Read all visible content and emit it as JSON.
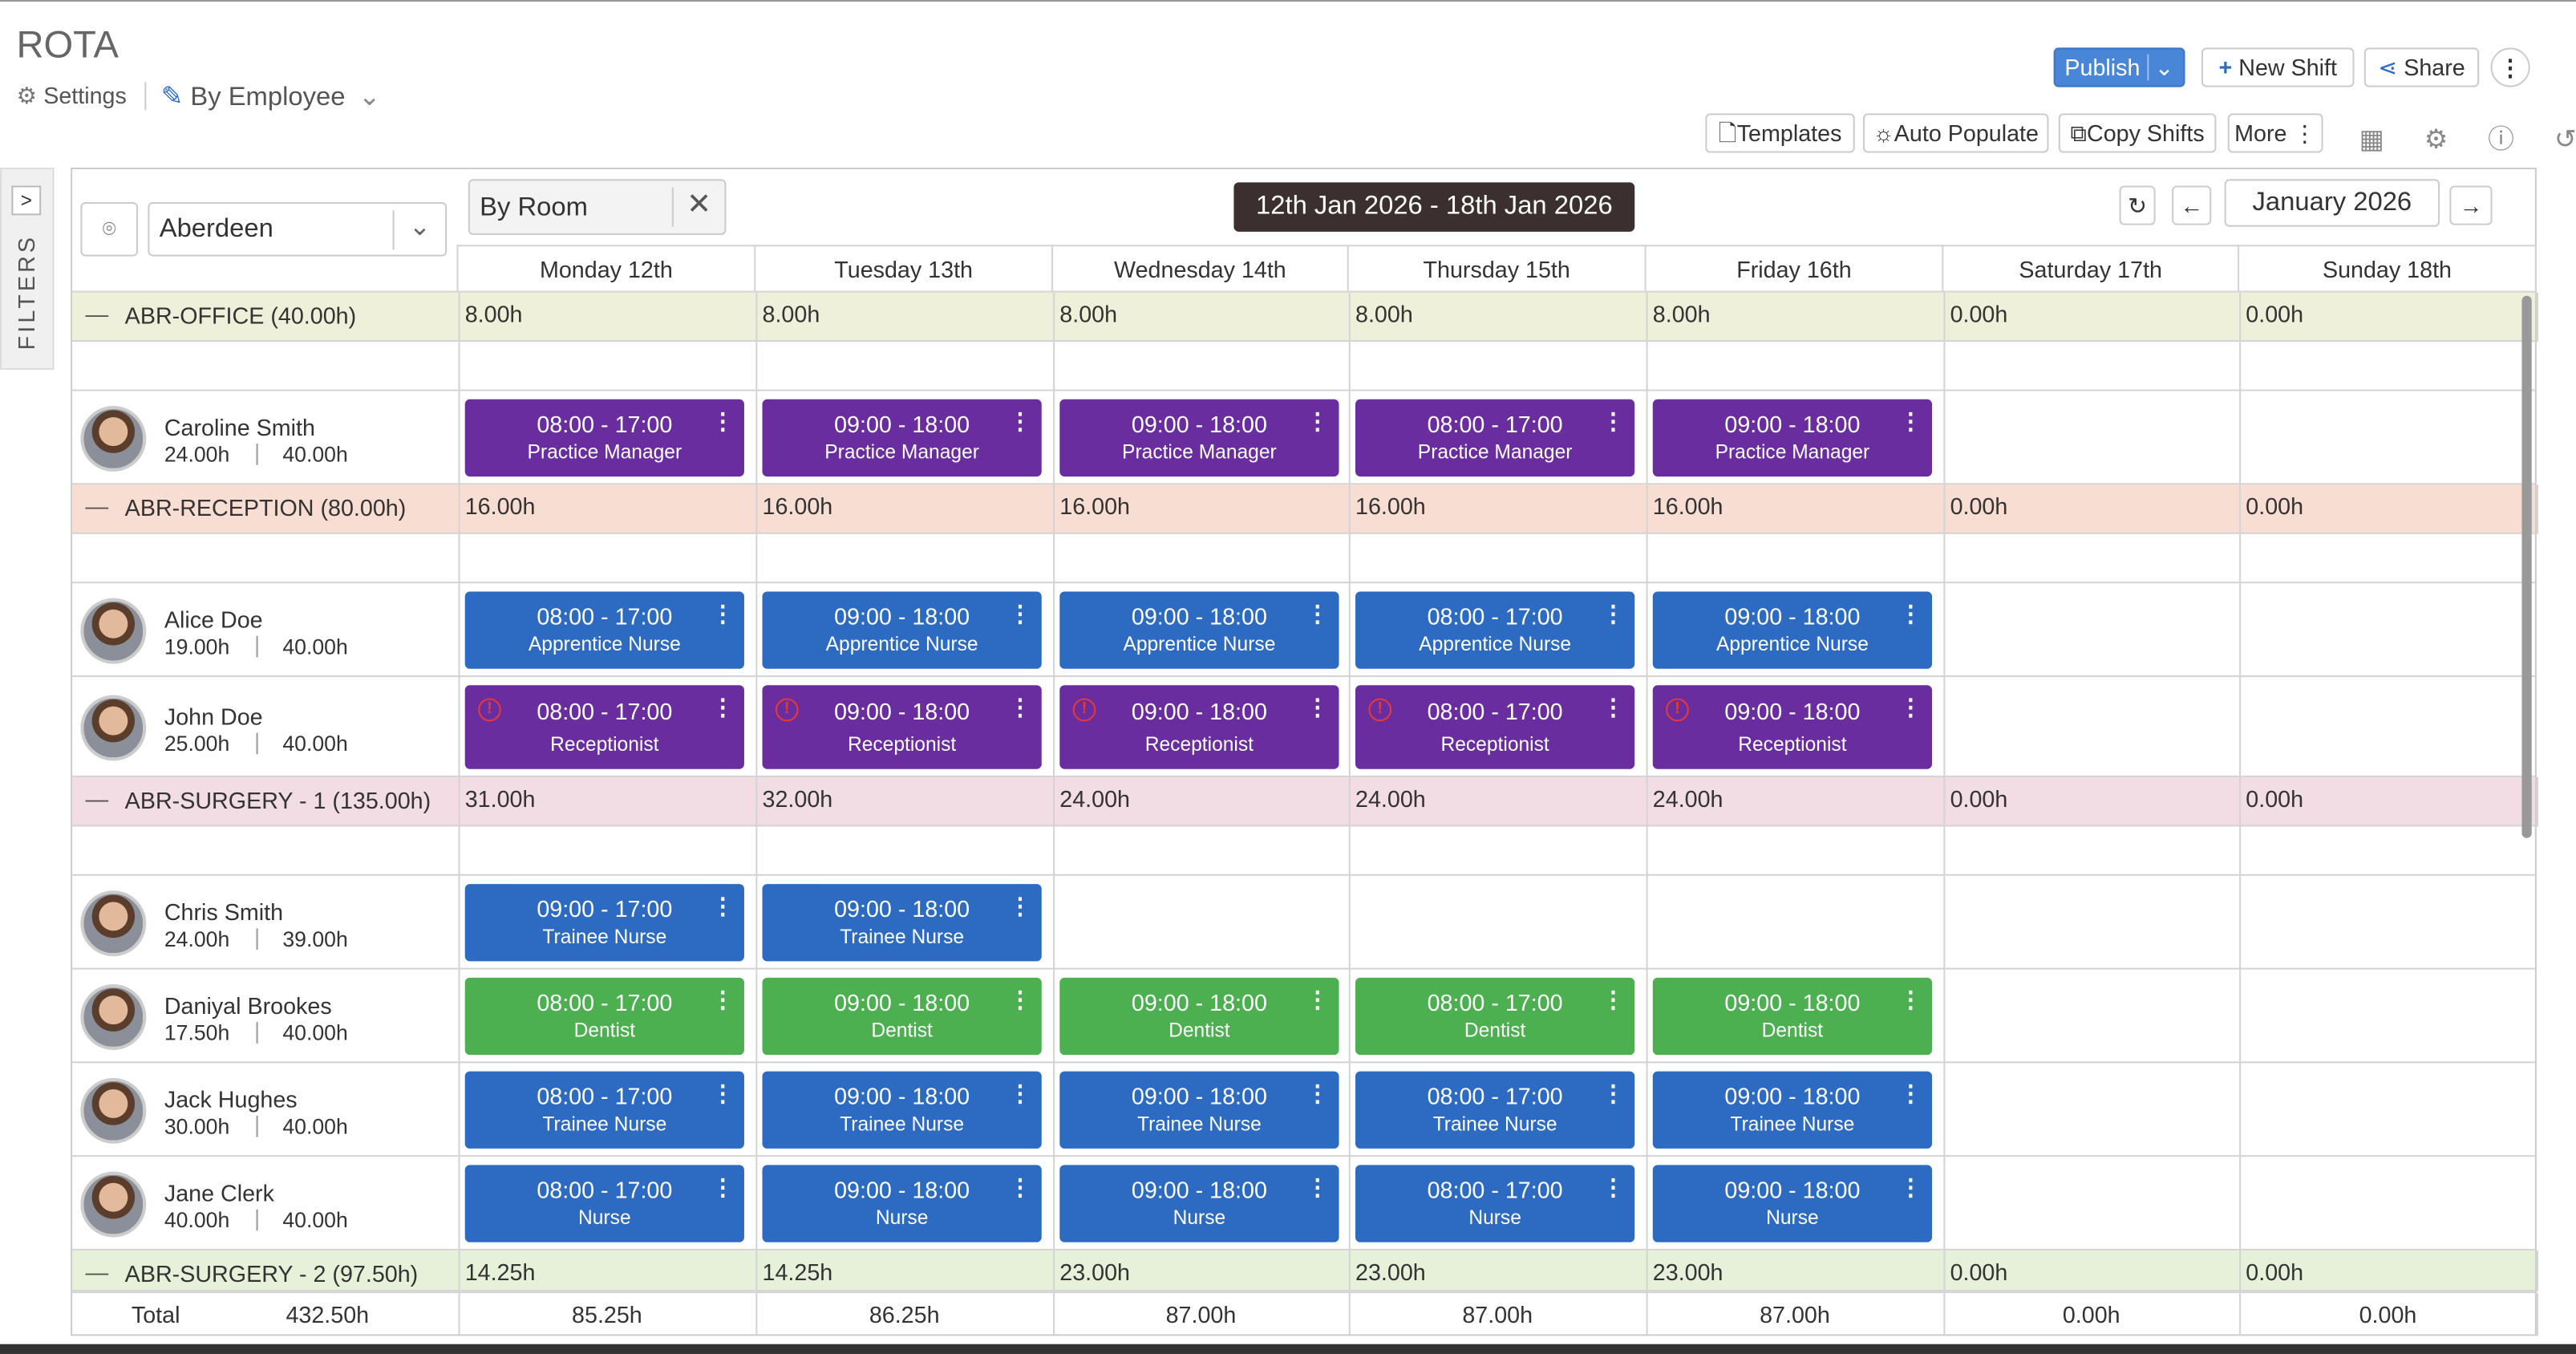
{
  "header": {
    "title": "ROTA",
    "settings": "Settings",
    "view": "By Employee"
  },
  "toolbar": {
    "publish": "Publish",
    "new_shift": "New Shift",
    "share": "Share",
    "templates": "Templates",
    "auto_populate": "Auto Populate",
    "copy_shifts": "Copy Shifts",
    "more": "More"
  },
  "sidebar": {
    "filters": "FILTERS"
  },
  "filters": {
    "location": "Aberdeen",
    "room_filter": "By Room"
  },
  "period": {
    "range": "12th Jan 2026 - 18th Jan 2026",
    "month": "January 2026"
  },
  "days": [
    "Monday 12th",
    "Tuesday 13th",
    "Wednesday 14th",
    "Thursday 15th",
    "Friday 16th",
    "Saturday 17th",
    "Sunday 18th"
  ],
  "groups": [
    {
      "name": "ABR-OFFICE (40.00h)",
      "color": "#eef0d9",
      "totals": [
        "8.00h",
        "8.00h",
        "8.00h",
        "8.00h",
        "8.00h",
        "0.00h",
        "0.00h"
      ],
      "employees": [
        {
          "name": "Caroline Smith",
          "hours": "24.00h",
          "contract": "40.00h",
          "shifts": [
            {
              "time": "08:00 - 17:00",
              "role": "Practice Manager",
              "color": "#6a2d9f",
              "warning": false
            },
            {
              "time": "09:00 - 18:00",
              "role": "Practice Manager",
              "color": "#6a2d9f",
              "warning": false
            },
            {
              "time": "09:00 - 18:00",
              "role": "Practice Manager",
              "color": "#6a2d9f",
              "warning": false
            },
            {
              "time": "08:00 - 17:00",
              "role": "Practice Manager",
              "color": "#6a2d9f",
              "warning": false
            },
            {
              "time": "09:00 - 18:00",
              "role": "Practice Manager",
              "color": "#6a2d9f",
              "warning": false
            },
            null,
            null
          ]
        }
      ]
    },
    {
      "name": "ABR-RECEPTION (80.00h)",
      "color": "#f8ddd3",
      "totals": [
        "16.00h",
        "16.00h",
        "16.00h",
        "16.00h",
        "16.00h",
        "0.00h",
        "0.00h"
      ],
      "employees": [
        {
          "name": "Alice Doe",
          "hours": "19.00h",
          "contract": "40.00h",
          "shifts": [
            {
              "time": "08:00 - 17:00",
              "role": "Apprentice Nurse",
              "color": "#2c6bc1",
              "warning": false
            },
            {
              "time": "09:00 - 18:00",
              "role": "Apprentice Nurse",
              "color": "#2c6bc1",
              "warning": false
            },
            {
              "time": "09:00 - 18:00",
              "role": "Apprentice Nurse",
              "color": "#2c6bc1",
              "warning": false
            },
            {
              "time": "08:00 - 17:00",
              "role": "Apprentice Nurse",
              "color": "#2c6bc1",
              "warning": false
            },
            {
              "time": "09:00 - 18:00",
              "role": "Apprentice Nurse",
              "color": "#2c6bc1",
              "warning": false
            },
            null,
            null
          ]
        },
        {
          "name": "John Doe",
          "hours": "25.00h",
          "contract": "40.00h",
          "shifts": [
            {
              "time": "08:00 - 17:00",
              "role": "Receptionist",
              "color": "#6a2d9f",
              "warning": true
            },
            {
              "time": "09:00 - 18:00",
              "role": "Receptionist",
              "color": "#6a2d9f",
              "warning": true
            },
            {
              "time": "09:00 - 18:00",
              "role": "Receptionist",
              "color": "#6a2d9f",
              "warning": true
            },
            {
              "time": "08:00 - 17:00",
              "role": "Receptionist",
              "color": "#6a2d9f",
              "warning": true
            },
            {
              "time": "09:00 - 18:00",
              "role": "Receptionist",
              "color": "#6a2d9f",
              "warning": true
            },
            null,
            null
          ]
        }
      ]
    },
    {
      "name": "ABR-SURGERY - 1 (135.00h)",
      "color": "#f1dde3",
      "totals": [
        "31.00h",
        "32.00h",
        "24.00h",
        "24.00h",
        "24.00h",
        "0.00h",
        "0.00h"
      ],
      "employees": [
        {
          "name": "Chris Smith",
          "hours": "24.00h",
          "contract": "39.00h",
          "shifts": [
            {
              "time": "09:00 - 17:00",
              "role": "Trainee Nurse",
              "color": "#2c6bc1",
              "warning": false
            },
            {
              "time": "09:00 - 18:00",
              "role": "Trainee Nurse",
              "color": "#2c6bc1",
              "warning": false
            },
            null,
            null,
            null,
            null,
            null
          ]
        },
        {
          "name": "Daniyal Brookes",
          "hours": "17.50h",
          "contract": "40.00h",
          "shifts": [
            {
              "time": "08:00 - 17:00",
              "role": "Dentist",
              "color": "#4caf50",
              "warning": false
            },
            {
              "time": "09:00 - 18:00",
              "role": "Dentist",
              "color": "#4caf50",
              "warning": false
            },
            {
              "time": "09:00 - 18:00",
              "role": "Dentist",
              "color": "#4caf50",
              "warning": false
            },
            {
              "time": "08:00 - 17:00",
              "role": "Dentist",
              "color": "#4caf50",
              "warning": false
            },
            {
              "time": "09:00 - 18:00",
              "role": "Dentist",
              "color": "#4caf50",
              "warning": false
            },
            null,
            null
          ]
        },
        {
          "name": "Jack Hughes",
          "hours": "30.00h",
          "contract": "40.00h",
          "shifts": [
            {
              "time": "08:00 - 17:00",
              "role": "Trainee Nurse",
              "color": "#2c6bc1",
              "warning": false
            },
            {
              "time": "09:00 - 18:00",
              "role": "Trainee Nurse",
              "color": "#2c6bc1",
              "warning": false
            },
            {
              "time": "09:00 - 18:00",
              "role": "Trainee Nurse",
              "color": "#2c6bc1",
              "warning": false
            },
            {
              "time": "08:00 - 17:00",
              "role": "Trainee Nurse",
              "color": "#2c6bc1",
              "warning": false
            },
            {
              "time": "09:00 - 18:00",
              "role": "Trainee Nurse",
              "color": "#2c6bc1",
              "warning": false
            },
            null,
            null
          ]
        },
        {
          "name": "Jane Clerk",
          "hours": "40.00h",
          "contract": "40.00h",
          "shifts": [
            {
              "time": "08:00 - 17:00",
              "role": "Nurse",
              "color": "#2c6bc1",
              "warning": false
            },
            {
              "time": "09:00 - 18:00",
              "role": "Nurse",
              "color": "#2c6bc1",
              "warning": false
            },
            {
              "time": "09:00 - 18:00",
              "role": "Nurse",
              "color": "#2c6bc1",
              "warning": false
            },
            {
              "time": "08:00 - 17:00",
              "role": "Nurse",
              "color": "#2c6bc1",
              "warning": false
            },
            {
              "time": "09:00 - 18:00",
              "role": "Nurse",
              "color": "#2c6bc1",
              "warning": false
            },
            null,
            null
          ]
        }
      ]
    },
    {
      "name": "ABR-SURGERY - 2 (97.50h)",
      "color": "#e7f1d9",
      "totals": [
        "14.25h",
        "14.25h",
        "23.00h",
        "23.00h",
        "23.00h",
        "0.00h",
        "0.00h"
      ],
      "employees": []
    }
  ],
  "footer": {
    "label": "Total",
    "total": "432.50h",
    "days": [
      "85.25h",
      "86.25h",
      "87.00h",
      "87.00h",
      "87.00h",
      "0.00h",
      "0.00h"
    ]
  }
}
